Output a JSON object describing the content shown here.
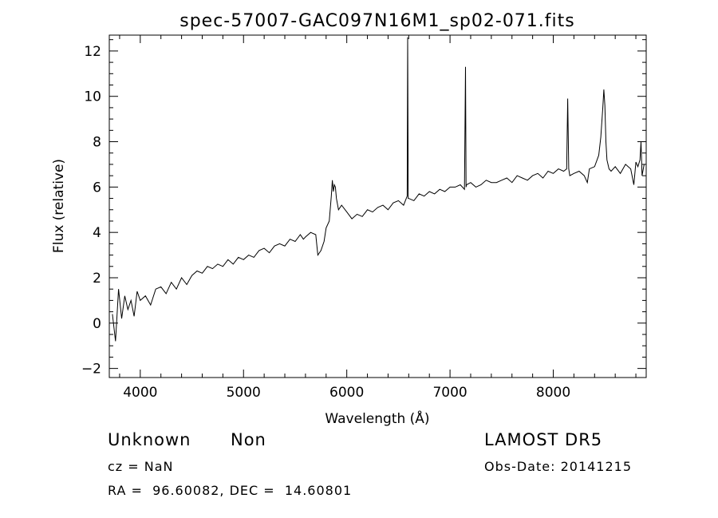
{
  "chart_data": {
    "type": "line",
    "title": "spec-57007-GAC097N16M1_sp02-071.fits",
    "xlabel": "Wavelength (Å)",
    "ylabel": "Flux (relative)",
    "xlim": [
      3700,
      8900
    ],
    "ylim": [
      -2.4,
      12.7
    ],
    "x_ticks": [
      4000,
      5000,
      6000,
      7000,
      8000
    ],
    "y_ticks": [
      -2,
      0,
      2,
      4,
      6,
      8,
      10,
      12
    ],
    "grid": false,
    "legend": "none",
    "series": [
      {
        "x": [
          3730,
          3760,
          3790,
          3820,
          3850,
          3880,
          3910,
          3940,
          3970,
          4000,
          4050,
          4100,
          4150,
          4200,
          4250,
          4300,
          4350,
          4400,
          4450,
          4500,
          4550,
          4600,
          4650,
          4700,
          4750,
          4800,
          4850,
          4900,
          4950,
          5000,
          5050,
          5100,
          5150,
          5200,
          5250,
          5300,
          5350,
          5400,
          5450,
          5500,
          5550,
          5580,
          5600,
          5650,
          5700,
          5720,
          5750,
          5780,
          5800,
          5830,
          5850,
          5860,
          5870,
          5880,
          5890,
          5900,
          5920,
          5950,
          6000,
          6050,
          6100,
          6150,
          6200,
          6250,
          6300,
          6350,
          6400,
          6450,
          6500,
          6550,
          6585,
          6590,
          6595,
          6600,
          6650,
          6700,
          6750,
          6800,
          6850,
          6900,
          6950,
          7000,
          7050,
          7100,
          7140,
          7150,
          7155,
          7160,
          7200,
          7250,
          7300,
          7350,
          7400,
          7450,
          7500,
          7550,
          7600,
          7650,
          7700,
          7750,
          7800,
          7850,
          7900,
          7950,
          8000,
          8050,
          8100,
          8130,
          8140,
          8150,
          8160,
          8200,
          8250,
          8300,
          8330,
          8350,
          8400,
          8440,
          8460,
          8480,
          8490,
          8500,
          8510,
          8520,
          8540,
          8560,
          8600,
          8650,
          8700,
          8750,
          8780,
          8800,
          8820,
          8840,
          8850,
          8860,
          8880
        ],
        "values": [
          0.4,
          -0.8,
          1.5,
          0.2,
          1.2,
          0.6,
          1.0,
          0.3,
          1.4,
          1.0,
          1.2,
          0.8,
          1.5,
          1.6,
          1.3,
          1.8,
          1.5,
          2.0,
          1.7,
          2.1,
          2.3,
          2.2,
          2.5,
          2.4,
          2.6,
          2.5,
          2.8,
          2.6,
          2.9,
          2.8,
          3.0,
          2.9,
          3.2,
          3.3,
          3.1,
          3.4,
          3.5,
          3.4,
          3.7,
          3.6,
          3.9,
          3.7,
          3.8,
          4.0,
          3.9,
          3.0,
          3.2,
          3.6,
          4.2,
          4.5,
          5.6,
          6.3,
          5.8,
          6.1,
          6.0,
          5.5,
          5.0,
          5.2,
          4.9,
          4.6,
          4.8,
          4.7,
          5.0,
          4.9,
          5.1,
          5.2,
          5.0,
          5.3,
          5.4,
          5.2,
          5.6,
          12.6,
          5.5,
          5.5,
          5.4,
          5.7,
          5.6,
          5.8,
          5.7,
          5.9,
          5.8,
          6.0,
          6.0,
          6.1,
          5.9,
          11.3,
          6.0,
          6.1,
          6.2,
          6.0,
          6.1,
          6.3,
          6.2,
          6.2,
          6.3,
          6.4,
          6.2,
          6.5,
          6.4,
          6.3,
          6.5,
          6.6,
          6.4,
          6.7,
          6.6,
          6.8,
          6.7,
          6.8,
          9.9,
          6.8,
          6.5,
          6.6,
          6.7,
          6.5,
          6.2,
          6.8,
          6.9,
          7.4,
          8.2,
          9.5,
          10.3,
          9.6,
          8.0,
          7.2,
          6.8,
          6.7,
          6.9,
          6.6,
          7.0,
          6.8,
          6.1,
          7.1,
          6.9,
          7.2,
          8.0,
          6.5,
          7.0
        ]
      }
    ]
  },
  "info": {
    "object_name": "Unknown",
    "class": "Non",
    "survey": "LAMOST DR5",
    "cz": "cz = NaN",
    "obs_date": "Obs-Date: 20141215",
    "coords": "RA =  96.60082, DEC =  14.60801"
  }
}
